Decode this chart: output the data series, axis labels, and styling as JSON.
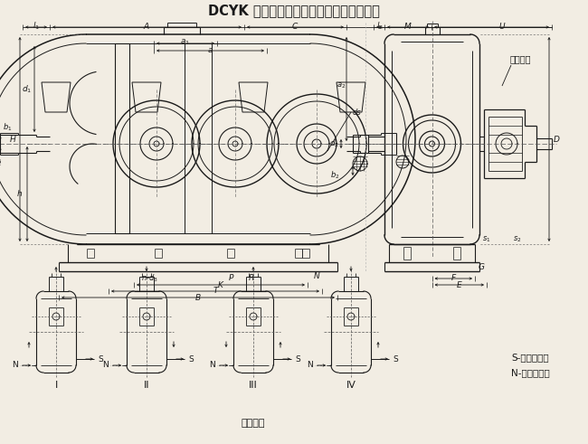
{
  "title": "DCYK 型减速器外形、安装尺寸及装配型式",
  "bg_color": "#f2ede3",
  "line_color": "#1a1a1a",
  "text_color": "#1a1a1a",
  "bottom_label": "装配型式",
  "assembly_labels": [
    "I",
    "II",
    "III",
    "IV"
  ],
  "legend_s": "S-顺时针旋转",
  "legend_n": "N-逆时针旋转",
  "label_zhang": "胀盘联接"
}
